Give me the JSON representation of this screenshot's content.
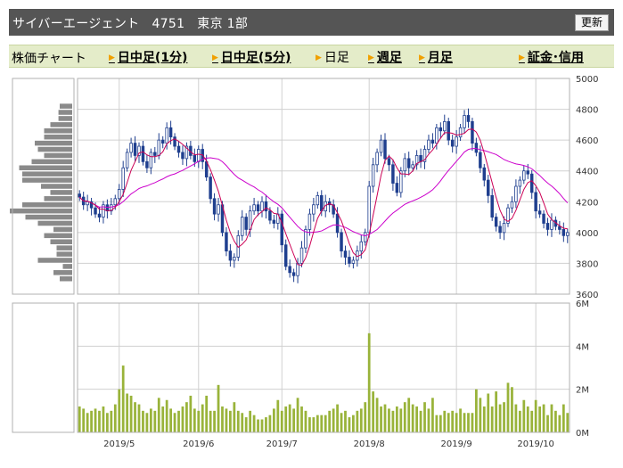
{
  "header": {
    "company": "サイバーエージェント",
    "code": "4751",
    "market": "東京 1部",
    "refresh_label": "更新"
  },
  "tabs": {
    "label": "株価チャート",
    "items": [
      {
        "label": "日中足(1分)",
        "link": true
      },
      {
        "label": "日中足(5分)",
        "link": true
      },
      {
        "label": "日足",
        "link": false
      },
      {
        "label": "週足",
        "link": true
      },
      {
        "label": "月足",
        "link": true
      },
      {
        "label": "証金･信用",
        "link": true
      }
    ]
  },
  "colors": {
    "candle": "#1f3f8f",
    "ma_short": "#cc0055",
    "ma_long": "#cc00cc",
    "volume": "#99b33a",
    "profile": "#8a8a8a",
    "grid": "#d0d0d0"
  },
  "chart_data": {
    "type": "candlestick",
    "price_axis": {
      "min": 3600,
      "max": 5000,
      "ticks": [
        "3600",
        "3800",
        "4000",
        "4200",
        "4400",
        "4600",
        "4800",
        "5000"
      ]
    },
    "volume_axis": {
      "min": 0,
      "max": 6,
      "unit": "M",
      "ticks": [
        "0M",
        "2M",
        "4M",
        "6M"
      ]
    },
    "x_labels": [
      {
        "label": "2019/5",
        "index": 10
      },
      {
        "label": "2019/6",
        "index": 30
      },
      {
        "label": "2019/7",
        "index": 51
      },
      {
        "label": "2019/8",
        "index": 73
      },
      {
        "label": "2019/9",
        "index": 95
      },
      {
        "label": "2019/10",
        "index": 115
      }
    ],
    "close": [
      4230,
      4180,
      4200,
      4160,
      4120,
      4100,
      4180,
      4140,
      4180,
      4220,
      4280,
      4420,
      4520,
      4580,
      4500,
      4560,
      4460,
      4420,
      4520,
      4500,
      4600,
      4580,
      4680,
      4620,
      4560,
      4520,
      4480,
      4560,
      4500,
      4460,
      4540,
      4460,
      4360,
      4220,
      4120,
      4180,
      4000,
      3880,
      3820,
      3840,
      3980,
      4100,
      4020,
      4140,
      4180,
      4140,
      4200,
      4140,
      4080,
      4060,
      4120,
      3920,
      3780,
      3740,
      3720,
      3800,
      3900,
      4020,
      4120,
      4180,
      4240,
      4140,
      4200,
      4180,
      4120,
      4000,
      3880,
      3840,
      3800,
      3820,
      3880,
      3940,
      4000,
      4300,
      4440,
      4520,
      4600,
      4480,
      4440,
      4320,
      4260,
      4400,
      4480,
      4420,
      4440,
      4500,
      4460,
      4540,
      4600,
      4580,
      4680,
      4660,
      4720,
      4600,
      4560,
      4620,
      4680,
      4760,
      4720,
      4580,
      4520,
      4420,
      4340,
      4240,
      4100,
      4040,
      4000,
      4060,
      4160,
      4200,
      4300,
      4340,
      4400,
      4380,
      4260,
      4140,
      4120,
      4060,
      4020,
      4080,
      4040,
      4020,
      3980,
      4000
    ],
    "volume_m": [
      1.2,
      1.1,
      0.9,
      1.0,
      1.1,
      1.0,
      1.2,
      0.9,
      1.0,
      1.3,
      2.0,
      3.1,
      1.8,
      1.7,
      1.4,
      1.3,
      1.0,
      0.9,
      1.1,
      1.0,
      1.6,
      1.2,
      1.5,
      1.1,
      0.9,
      1.0,
      1.2,
      1.4,
      1.7,
      1.1,
      1.0,
      1.3,
      1.7,
      1.0,
      1.0,
      2.2,
      1.2,
      1.1,
      1.0,
      1.4,
      1.0,
      0.9,
      0.7,
      1.0,
      0.8,
      0.6,
      0.6,
      0.7,
      0.8,
      1.1,
      1.5,
      1.0,
      1.2,
      1.3,
      1.1,
      1.6,
      1.2,
      1.0,
      0.7,
      0.7,
      0.8,
      0.8,
      0.8,
      1.0,
      1.1,
      1.3,
      0.9,
      1.0,
      0.7,
      0.8,
      1.0,
      1.1,
      1.4,
      4.6,
      1.9,
      1.6,
      1.2,
      1.3,
      1.1,
      1.0,
      1.2,
      1.1,
      1.4,
      1.6,
      1.3,
      1.2,
      1.0,
      1.4,
      1.1,
      1.6,
      0.8,
      0.8,
      1.0,
      0.9,
      1.0,
      0.9,
      1.1,
      0.9,
      0.9,
      0.9,
      2.0,
      1.6,
      1.2,
      1.8,
      1.2,
      1.9,
      1.3,
      1.4,
      2.3,
      2.1,
      1.3,
      1.0,
      1.5,
      1.2,
      1.0,
      1.5,
      1.2,
      1.3,
      0.8,
      1.3,
      1.0,
      0.8,
      1.3,
      0.9
    ],
    "ma_short_window": 5,
    "ma_long_window": 25,
    "volume_profile": {
      "bins": [
        {
          "price": 4820,
          "length": 0.2
        },
        {
          "price": 4780,
          "length": 0.22
        },
        {
          "price": 4740,
          "length": 0.22
        },
        {
          "price": 4700,
          "length": 0.35
        },
        {
          "price": 4660,
          "length": 0.45
        },
        {
          "price": 4620,
          "length": 0.45
        },
        {
          "price": 4580,
          "length": 0.6
        },
        {
          "price": 4540,
          "length": 0.55
        },
        {
          "price": 4500,
          "length": 0.45
        },
        {
          "price": 4460,
          "length": 0.65
        },
        {
          "price": 4420,
          "length": 0.85
        },
        {
          "price": 4380,
          "length": 0.8
        },
        {
          "price": 4340,
          "length": 0.8
        },
        {
          "price": 4300,
          "length": 0.5
        },
        {
          "price": 4260,
          "length": 0.35
        },
        {
          "price": 4220,
          "length": 0.45
        },
        {
          "price": 4180,
          "length": 0.8
        },
        {
          "price": 4140,
          "length": 1.0
        },
        {
          "price": 4100,
          "length": 0.75
        },
        {
          "price": 4060,
          "length": 0.55
        },
        {
          "price": 4020,
          "length": 0.3
        },
        {
          "price": 3980,
          "length": 0.45
        },
        {
          "price": 3940,
          "length": 0.35
        },
        {
          "price": 3900,
          "length": 0.25
        },
        {
          "price": 3860,
          "length": 0.25
        },
        {
          "price": 3820,
          "length": 0.55
        },
        {
          "price": 3780,
          "length": 0.15
        },
        {
          "price": 3740,
          "length": 0.3
        },
        {
          "price": 3700,
          "length": 0.2
        }
      ]
    }
  }
}
